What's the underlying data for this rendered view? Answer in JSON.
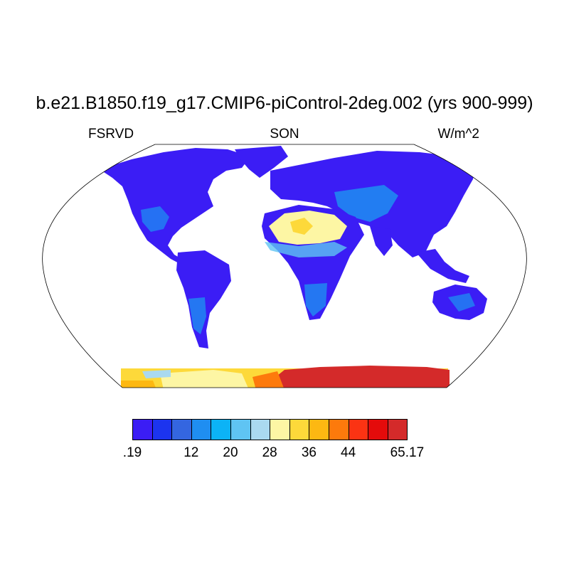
{
  "title": "b.e21.B1850.f19_g17.CMIP6-piControl-2deg.002 (yrs 900-999)",
  "left_label": "FSRVD",
  "center_label": "SON",
  "right_label": "W/m^2",
  "colorbar": {
    "colors": [
      "#3b1df5",
      "#1c34ef",
      "#3466e0",
      "#1f8ef1",
      "#0cb3f6",
      "#5fc4f3",
      "#aad9f0",
      "#fdf6a4",
      "#fdd93a",
      "#fdb812",
      "#fd7a0c",
      "#fb3313",
      "#e40b0b",
      "#d42a2a"
    ],
    "labels": [
      ".19",
      "12",
      "20",
      "28",
      "36",
      "44",
      "65.17"
    ]
  },
  "legend_colors": {
    "ocean": "#ffffff",
    "land_low": "#3b1df5",
    "land_mid": "#1f8ef1",
    "desert": "#fdf6a4",
    "antarctica_high": "#d42a2a"
  }
}
